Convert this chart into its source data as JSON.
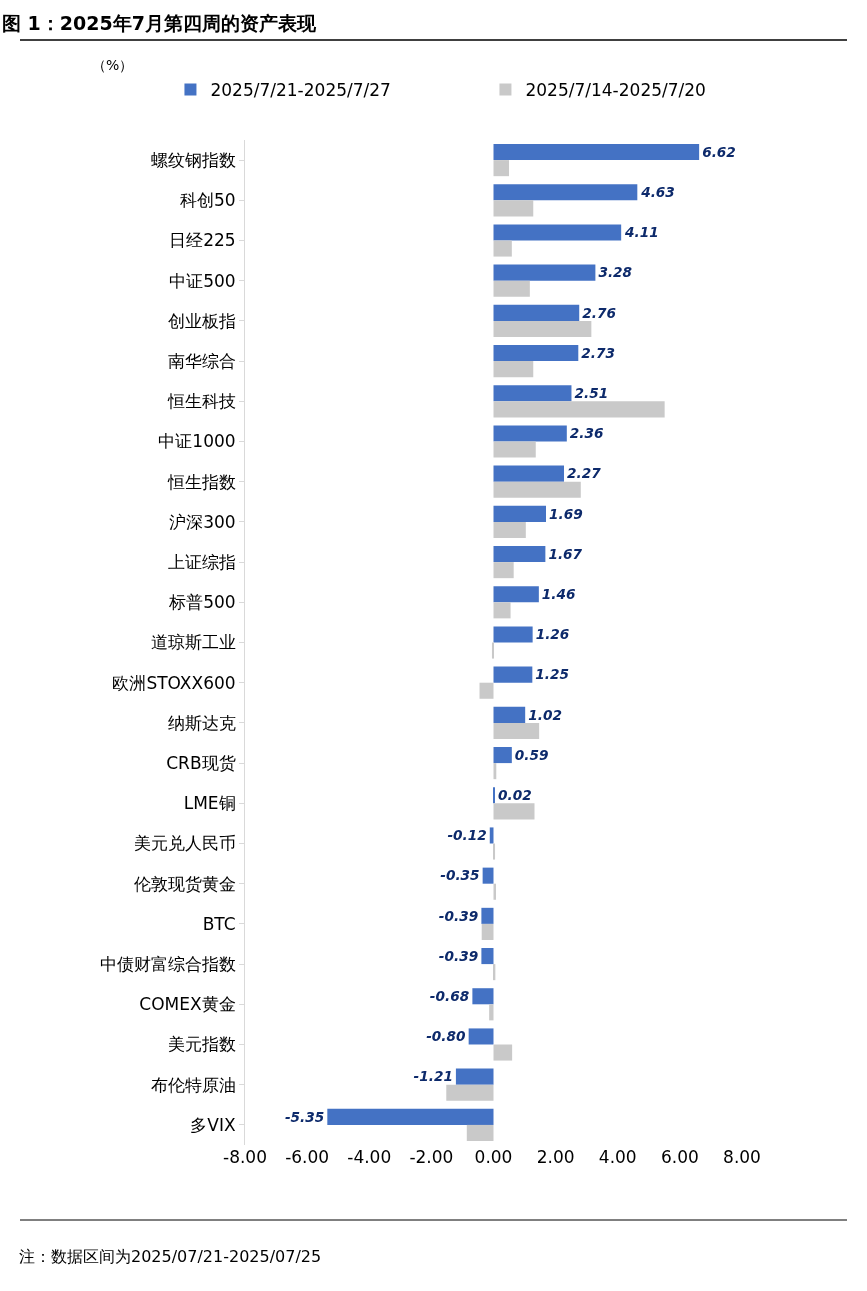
{
  "chart_data": {
    "type": "bar",
    "orientation": "horizontal",
    "title": "图 1：2025年7月第四周的资产表现",
    "categories": [
      "螺纹钢指数",
      "科创50",
      "日经225",
      "中证500",
      "创业板指",
      "南华综合",
      "恒生科技",
      "中证1000",
      "恒生指数",
      "沪深300",
      "上证综指",
      "标普500",
      "道琼斯工业",
      "欧洲STOXX600",
      "纳斯达克",
      "CRB现货",
      "LME铜",
      "美元兑人民币",
      "伦敦现货黄金",
      "BTC",
      "中债财富综合指数",
      "COMEX黄金",
      "美元指数",
      "布伦特原油",
      "多VIX"
    ],
    "series": [
      {
        "name": "2025/7/21-2025/7/27",
        "color": "#4472c4",
        "values": [
          6.62,
          4.63,
          4.11,
          3.28,
          2.76,
          2.73,
          2.51,
          2.36,
          2.27,
          1.69,
          1.67,
          1.46,
          1.26,
          1.25,
          1.02,
          0.59,
          0.02,
          -0.12,
          -0.35,
          -0.39,
          -0.39,
          -0.68,
          -0.8,
          -1.21,
          -5.35
        ],
        "value_labels": [
          "6.62",
          "4.63",
          "4.11",
          "3.28",
          "2.76",
          "2.73",
          "2.51",
          "2.36",
          "2.27",
          "1.69",
          "1.67",
          "1.46",
          "1.26",
          "1.25",
          "1.02",
          "0.59",
          "0.02",
          "-0.12",
          "-0.35",
          "-0.39",
          "-0.39",
          "-0.68",
          "-0.80",
          "-1.21",
          "-5.35"
        ]
      },
      {
        "name": "2025/7/14-2025/7/20",
        "color": "#c9c9c9",
        "values": [
          0.5,
          1.28,
          0.59,
          1.17,
          3.15,
          1.28,
          5.51,
          1.36,
          2.81,
          1.04,
          0.65,
          0.55,
          -0.05,
          -0.45,
          1.47,
          0.09,
          1.32,
          0.05,
          0.08,
          -0.38,
          0.06,
          -0.14,
          0.6,
          -1.52,
          -0.86
        ]
      }
    ],
    "xlim": [
      -8,
      8
    ],
    "xticks": [
      {
        "value": -8,
        "label": "-8.00"
      },
      {
        "value": -6,
        "label": "-6.00"
      },
      {
        "value": -4,
        "label": "-4.00"
      },
      {
        "value": -2,
        "label": "-2.00"
      },
      {
        "value": 0,
        "label": "0.00"
      },
      {
        "value": 2,
        "label": "2.00"
      },
      {
        "value": 4,
        "label": "4.00"
      },
      {
        "value": 6,
        "label": "6.00"
      },
      {
        "value": 8,
        "label": "8.00"
      }
    ],
    "legend": "top",
    "annotations": [
      "（%）",
      "注：数据区间为2025/07/21-2025/07/25"
    ]
  }
}
